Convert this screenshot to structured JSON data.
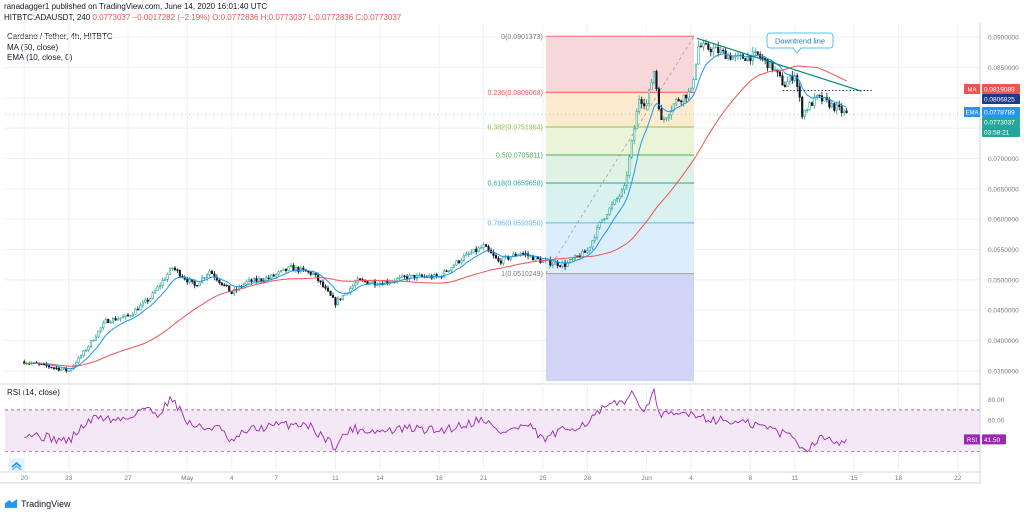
{
  "header": {
    "published": "ranadagger1 published on TradingView.com, June 14, 2020 16:01:40 UTC",
    "symbol_line": "HITBTC:ADAUSDT, 240",
    "last": "0.0773037",
    "change": "−0.0017282 (−2.19%)",
    "ohlc": "O:0.0772836 H:0.0773037 L:0.0772836 C:0.0773037"
  },
  "legend": {
    "title": "Cardano / Tether, 4h, HITBTC",
    "ma": "MA (50, close)",
    "ema": "EMA (10, close, 0)",
    "rsi": "RSI (14, close)"
  },
  "colors": {
    "up": "#26a69a",
    "down": "#131722",
    "ma": "#ef5350",
    "ema": "#2196f3",
    "trendline": "#00897b",
    "rsi": "#9c27b0",
    "grid": "#eef0f3",
    "axis": "#787b86"
  },
  "brand": {
    "name": "TradingView",
    "logo_icon": "tradingview-logo-icon"
  },
  "chart_data": [
    {
      "type": "candlestick",
      "title": "Cardano / Tether, 4h, HITBTC",
      "timeframe": "4h",
      "ylim": [
        0.033,
        0.092
      ],
      "y_ticks": [
        "0.0900000",
        "0.0850000",
        "0.0800000",
        "0.0750000",
        "0.0700000",
        "0.0650000",
        "0.0600000",
        "0.0550000",
        "0.0500000",
        "0.0450000",
        "0.0400000",
        "0.0350000"
      ],
      "x_ticks": [
        "20",
        "23",
        "27",
        "May",
        "4",
        "7",
        "11",
        "14",
        "18",
        "21",
        "25",
        "28",
        "Jun",
        "4",
        "8",
        "11",
        "15",
        "18",
        "22"
      ],
      "x_tick_days": [
        0,
        3,
        7,
        11,
        14,
        17,
        21,
        24,
        28,
        31,
        35,
        38,
        42,
        45,
        49,
        52,
        56,
        59,
        63
      ],
      "x_range_days": [
        -1.3,
        64.5
      ],
      "price_path": [
        [
          0,
          0.0365
        ],
        [
          1.5,
          0.0358
        ],
        [
          3,
          0.035
        ],
        [
          4,
          0.038
        ],
        [
          5.5,
          0.0432
        ],
        [
          7,
          0.044
        ],
        [
          8.5,
          0.047
        ],
        [
          10,
          0.052
        ],
        [
          11.5,
          0.049
        ],
        [
          12.5,
          0.0515
        ],
        [
          14,
          0.0478
        ],
        [
          15,
          0.0496
        ],
        [
          16.5,
          0.0503
        ],
        [
          18,
          0.052
        ],
        [
          19.5,
          0.051
        ],
        [
          21,
          0.0462
        ],
        [
          22.5,
          0.0498
        ],
        [
          24,
          0.0495
        ],
        [
          26,
          0.0505
        ],
        [
          28,
          0.0505
        ],
        [
          29.5,
          0.0535
        ],
        [
          31,
          0.0555
        ],
        [
          32,
          0.053
        ],
        [
          33.5,
          0.0545
        ],
        [
          35,
          0.053
        ],
        [
          36.5,
          0.0525
        ],
        [
          38,
          0.0548
        ],
        [
          39,
          0.06
        ],
        [
          40.5,
          0.065
        ],
        [
          41.5,
          0.08
        ],
        [
          42,
          0.079
        ],
        [
          42.5,
          0.0845
        ],
        [
          43,
          0.076
        ],
        [
          44,
          0.0795
        ],
        [
          45,
          0.081
        ],
        [
          45.5,
          0.0885
        ],
        [
          46.5,
          0.088
        ],
        [
          48,
          0.0865
        ],
        [
          49.5,
          0.087
        ],
        [
          50.5,
          0.085
        ],
        [
          51.3,
          0.082
        ],
        [
          52,
          0.084
        ],
        [
          52.5,
          0.0775
        ],
        [
          53.5,
          0.08
        ],
        [
          54,
          0.0795
        ],
        [
          55,
          0.078
        ],
        [
          55.5,
          0.0773
        ]
      ],
      "series": [
        {
          "name": "MA (50, close)",
          "type": "line",
          "last_value": "0.0819089"
        },
        {
          "name": "EMA (10, close, 0)",
          "type": "line",
          "last_value": "0.0778789"
        }
      ],
      "last_price": "0.0773037",
      "price_tags": [
        {
          "label": "MA",
          "value": "0.0819089",
          "color": "#ef5350"
        },
        {
          "label": "",
          "value": "0.0806825",
          "color": "#1e3a8a"
        },
        {
          "label": "EMA",
          "value": "0.0778789",
          "color": "#2196f3"
        },
        {
          "label": "",
          "value": "0.0773037",
          "color": "#26a69a"
        }
      ],
      "countdown": "03:58:21",
      "fibonacci": {
        "from_day": 35.2,
        "to_day": 45.2,
        "levels": [
          {
            "ratio": "0",
            "price": 0.0901373,
            "label": "0(0.0901373)",
            "fill": "#f8d7da",
            "line": "#e57373",
            "text": "#787b86"
          },
          {
            "ratio": "0.236",
            "price": 0.0809068,
            "label": "0.236(0.0809068)",
            "fill": "#fdebd0",
            "line": "#ef5350",
            "text": "#ef5350"
          },
          {
            "ratio": "0.382",
            "price": 0.0751964,
            "label": "0.382(0.0751964)",
            "fill": "#eaf5d7",
            "line": "#8bc34a",
            "text": "#8bc34a"
          },
          {
            "ratio": "0.5",
            "price": 0.0705811,
            "label": "0.5(0.0705811)",
            "fill": "#dff2e4",
            "line": "#4caf50",
            "text": "#4caf50"
          },
          {
            "ratio": "0.618",
            "price": 0.0659658,
            "label": "0.618(0.0659658)",
            "fill": "#d9f1ef",
            "line": "#26a69a",
            "text": "#26a69a"
          },
          {
            "ratio": "0.786",
            "price": 0.059395,
            "label": "0.786(0.0593950)",
            "fill": "#dcedfb",
            "line": "#64b5f6",
            "text": "#64b5f6"
          },
          {
            "ratio": "1",
            "price": 0.0510249,
            "label": "1(0.0510249)",
            "fill": "#e3e3e3",
            "line": "#9e9e9e",
            "text": "#787b86"
          }
        ],
        "extension_fill": "#d1d4f5",
        "extension_bottom": 0.0333
      },
      "annotations": [
        {
          "type": "trendline",
          "label": "Downtrend line",
          "from": [
            45.4,
            0.0898
          ],
          "to": [
            56.5,
            0.0811
          ]
        },
        {
          "type": "horizontal-dotted",
          "from_day": 51.2,
          "to_day": 57.2,
          "price": 0.0812
        }
      ]
    },
    {
      "type": "line",
      "title": "RSI (14, close)",
      "ylim": [
        12,
        93
      ],
      "y_ticks": [
        "80.00",
        "60.00"
      ],
      "bands": [
        30,
        70
      ],
      "last_value": "41.50",
      "rsi_path": [
        [
          0,
          48
        ],
        [
          2,
          42
        ],
        [
          3,
          40
        ],
        [
          4,
          55
        ],
        [
          5,
          64
        ],
        [
          6,
          60
        ],
        [
          7,
          62
        ],
        [
          8,
          72
        ],
        [
          9,
          66
        ],
        [
          10,
          82
        ],
        [
          11,
          58
        ],
        [
          12,
          52
        ],
        [
          13,
          54
        ],
        [
          14,
          38
        ],
        [
          15,
          50
        ],
        [
          17,
          55
        ],
        [
          19,
          57
        ],
        [
          21,
          35
        ],
        [
          22,
          52
        ],
        [
          24,
          49
        ],
        [
          26,
          52
        ],
        [
          28,
          50
        ],
        [
          30,
          57
        ],
        [
          31,
          62
        ],
        [
          32,
          48
        ],
        [
          34,
          55
        ],
        [
          35,
          41
        ],
        [
          36,
          48
        ],
        [
          38,
          58
        ],
        [
          39,
          70
        ],
        [
          40,
          76
        ],
        [
          41,
          84
        ],
        [
          42,
          70
        ],
        [
          42.5,
          86
        ],
        [
          43,
          64
        ],
        [
          44,
          65
        ],
        [
          45,
          68
        ],
        [
          46,
          62
        ],
        [
          48,
          58
        ],
        [
          50,
          54
        ],
        [
          51,
          48
        ],
        [
          52,
          45
        ],
        [
          52.5,
          31
        ],
        [
          53.5,
          40
        ],
        [
          54,
          44
        ],
        [
          55,
          40
        ],
        [
          55.5,
          41.5
        ]
      ]
    }
  ]
}
